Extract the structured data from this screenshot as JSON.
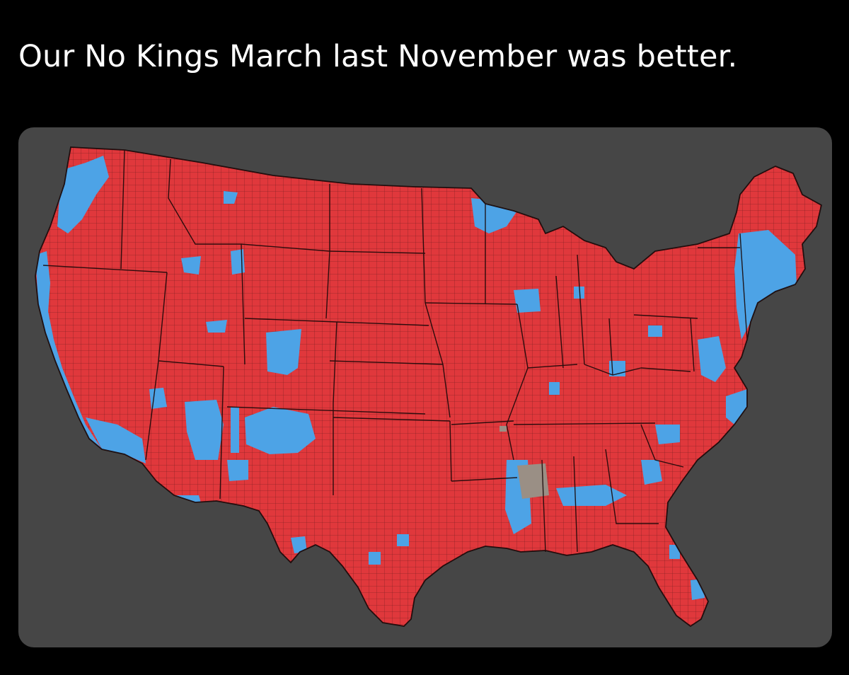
{
  "post": {
    "caption": "Our No Kings March last November was better."
  },
  "map": {
    "subject": "us-county-map",
    "colors": {
      "page_background": "#000000",
      "card_background": "#464646",
      "red_counties": "#e0383c",
      "blue_counties": "#4da3e6",
      "gray_counties": "#9a8f85",
      "borders": "#1e0e0e"
    }
  }
}
